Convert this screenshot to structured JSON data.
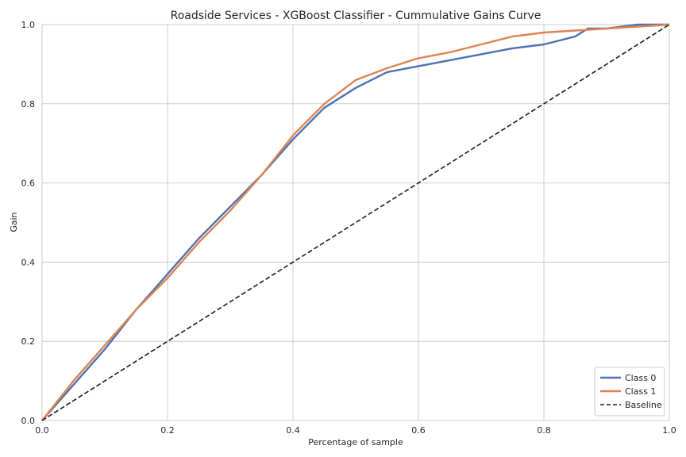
{
  "chart_data": {
    "type": "line",
    "title": "Roadside Services - XGBoost Classifier - Cummulative Gains Curve",
    "xlabel": "Percentage of sample",
    "ylabel": "Gain",
    "xlim": [
      0.0,
      1.0
    ],
    "ylim": [
      0.0,
      1.0
    ],
    "grid": true,
    "legend_position": "lower-right",
    "x_ticks": [
      "0.0",
      "0.2",
      "0.4",
      "0.6",
      "0.8",
      "1.0"
    ],
    "y_ticks": [
      "0.0",
      "0.2",
      "0.4",
      "0.6",
      "0.8",
      "1.0"
    ],
    "series": [
      {
        "name": "Class 0",
        "color": "#4c72b0",
        "style": "solid",
        "x": [
          0.0,
          0.05,
          0.1,
          0.15,
          0.2,
          0.25,
          0.3,
          0.35,
          0.4,
          0.45,
          0.5,
          0.55,
          0.6,
          0.65,
          0.7,
          0.75,
          0.8,
          0.85,
          0.87,
          0.9,
          0.95,
          1.0
        ],
        "y": [
          0.0,
          0.09,
          0.18,
          0.28,
          0.37,
          0.46,
          0.54,
          0.62,
          0.71,
          0.79,
          0.84,
          0.88,
          0.895,
          0.91,
          0.925,
          0.94,
          0.95,
          0.97,
          0.99,
          0.99,
          1.0,
          1.0
        ]
      },
      {
        "name": "Class 1",
        "color": "#dd8452",
        "style": "solid",
        "x": [
          0.0,
          0.05,
          0.1,
          0.15,
          0.2,
          0.25,
          0.3,
          0.35,
          0.4,
          0.45,
          0.5,
          0.55,
          0.6,
          0.65,
          0.7,
          0.75,
          0.8,
          0.85,
          0.9,
          0.95,
          1.0
        ],
        "y": [
          0.0,
          0.1,
          0.19,
          0.28,
          0.36,
          0.45,
          0.53,
          0.62,
          0.72,
          0.8,
          0.86,
          0.89,
          0.915,
          0.93,
          0.95,
          0.97,
          0.98,
          0.985,
          0.99,
          0.995,
          1.0
        ]
      },
      {
        "name": "Baseline",
        "color": "#1a1a1a",
        "style": "dashed",
        "x": [
          0.0,
          1.0
        ],
        "y": [
          0.0,
          1.0
        ]
      }
    ]
  }
}
